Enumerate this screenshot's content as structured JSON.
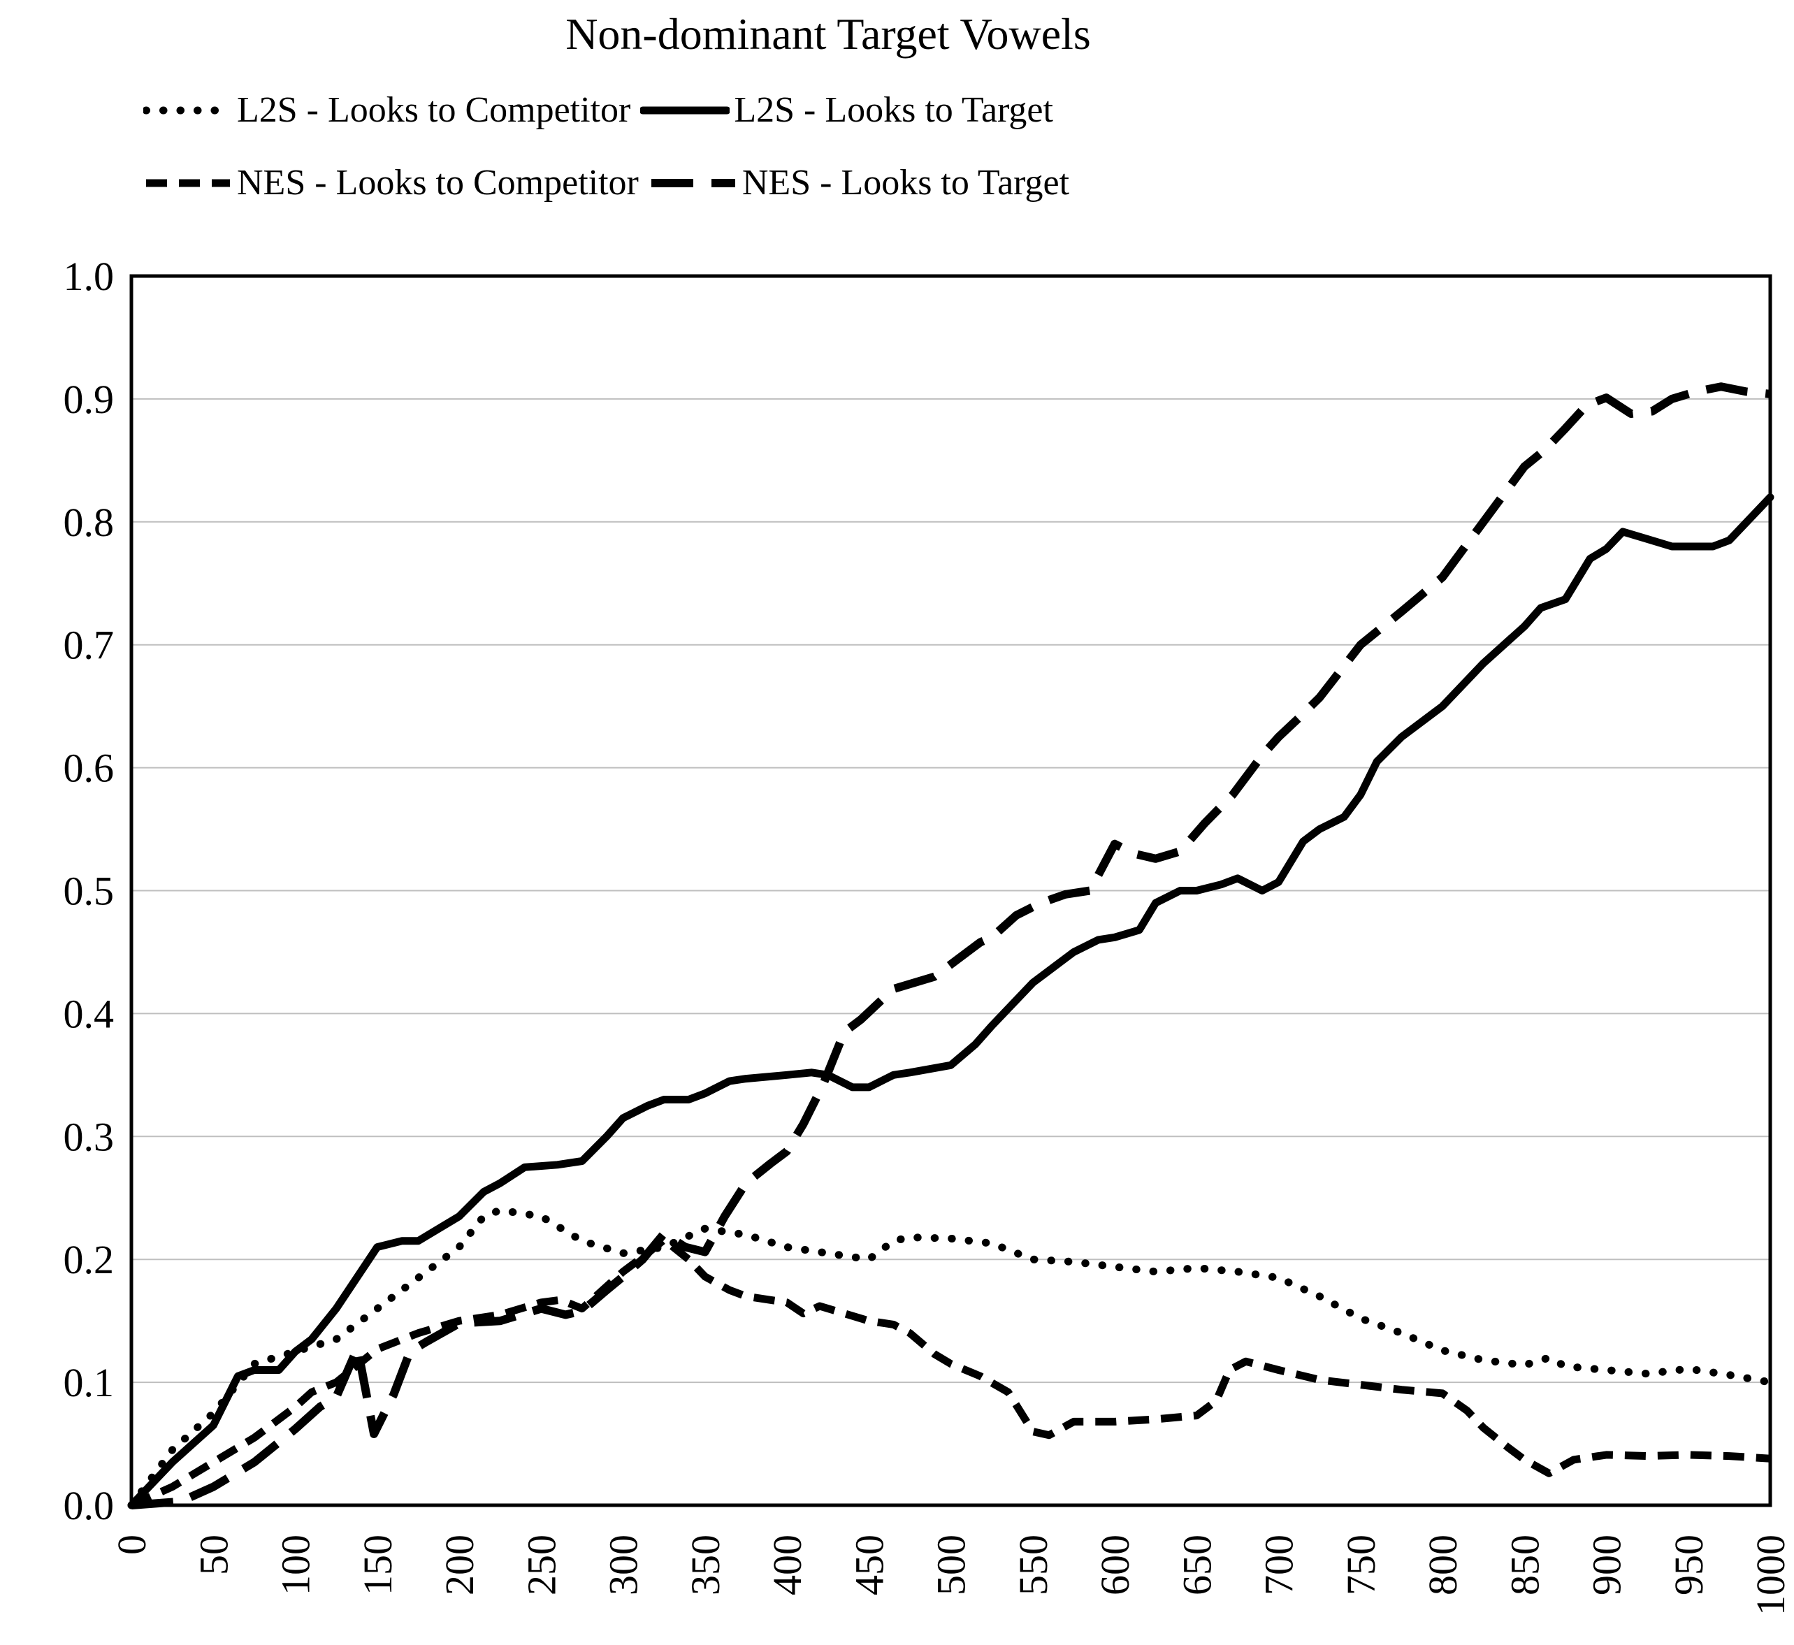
{
  "chart_data": {
    "type": "line",
    "title": "Non-dominant Target Vowels",
    "xlabel": "",
    "ylabel": "",
    "xlim": [
      0,
      1000
    ],
    "ylim": [
      0.0,
      1.0
    ],
    "x_ticks": [
      0,
      50,
      100,
      150,
      200,
      250,
      300,
      350,
      400,
      450,
      500,
      550,
      600,
      650,
      700,
      750,
      800,
      850,
      900,
      950,
      1000
    ],
    "y_ticks": [
      "1.0",
      "0.9",
      "0.8",
      "0.7",
      "0.6",
      "0.5",
      "0.4",
      "0.3",
      "0.2",
      "0.1",
      "0.0"
    ],
    "grid": "horizontal-gridlines-on",
    "legend_position": "top",
    "line_color": "#000000",
    "grid_color": "#bfbfbf",
    "series": [
      {
        "name": "L2S - Looks to Competitor",
        "style": "dotted",
        "points": [
          [
            0,
            0
          ],
          [
            25,
            0.045
          ],
          [
            50,
            0.075
          ],
          [
            75,
            0.115
          ],
          [
            100,
            0.125
          ],
          [
            125,
            0.135
          ],
          [
            150,
            0.16
          ],
          [
            175,
            0.185
          ],
          [
            200,
            0.21
          ],
          [
            215,
            0.235
          ],
          [
            225,
            0.24
          ],
          [
            250,
            0.235
          ],
          [
            275,
            0.215
          ],
          [
            300,
            0.205
          ],
          [
            325,
            0.21
          ],
          [
            350,
            0.225
          ],
          [
            375,
            0.22
          ],
          [
            400,
            0.21
          ],
          [
            425,
            0.205
          ],
          [
            450,
            0.2
          ],
          [
            465,
            0.215
          ],
          [
            475,
            0.218
          ],
          [
            500,
            0.217
          ],
          [
            525,
            0.213
          ],
          [
            550,
            0.2
          ],
          [
            575,
            0.198
          ],
          [
            600,
            0.194
          ],
          [
            625,
            0.19
          ],
          [
            650,
            0.193
          ],
          [
            675,
            0.19
          ],
          [
            700,
            0.185
          ],
          [
            725,
            0.17
          ],
          [
            750,
            0.152
          ],
          [
            775,
            0.14
          ],
          [
            800,
            0.126
          ],
          [
            825,
            0.118
          ],
          [
            850,
            0.114
          ],
          [
            865,
            0.12
          ],
          [
            875,
            0.113
          ],
          [
            900,
            0.11
          ],
          [
            925,
            0.107
          ],
          [
            950,
            0.111
          ],
          [
            975,
            0.106
          ],
          [
            1000,
            0.1
          ]
        ]
      },
      {
        "name": "L2S - Looks to Target",
        "style": "solid",
        "points": [
          [
            0,
            0
          ],
          [
            25,
            0.035
          ],
          [
            50,
            0.065
          ],
          [
            65,
            0.105
          ],
          [
            75,
            0.11
          ],
          [
            90,
            0.11
          ],
          [
            100,
            0.125
          ],
          [
            110,
            0.135
          ],
          [
            125,
            0.16
          ],
          [
            150,
            0.21
          ],
          [
            165,
            0.215
          ],
          [
            175,
            0.215
          ],
          [
            200,
            0.235
          ],
          [
            215,
            0.255
          ],
          [
            225,
            0.262
          ],
          [
            240,
            0.275
          ],
          [
            260,
            0.277
          ],
          [
            275,
            0.28
          ],
          [
            290,
            0.3
          ],
          [
            300,
            0.315
          ],
          [
            315,
            0.325
          ],
          [
            325,
            0.33
          ],
          [
            340,
            0.33
          ],
          [
            350,
            0.335
          ],
          [
            365,
            0.345
          ],
          [
            375,
            0.347
          ],
          [
            400,
            0.35
          ],
          [
            415,
            0.352
          ],
          [
            425,
            0.35
          ],
          [
            440,
            0.34
          ],
          [
            450,
            0.34
          ],
          [
            465,
            0.35
          ],
          [
            475,
            0.352
          ],
          [
            500,
            0.358
          ],
          [
            515,
            0.375
          ],
          [
            525,
            0.39
          ],
          [
            550,
            0.425
          ],
          [
            565,
            0.44
          ],
          [
            575,
            0.45
          ],
          [
            590,
            0.46
          ],
          [
            600,
            0.462
          ],
          [
            615,
            0.468
          ],
          [
            625,
            0.49
          ],
          [
            640,
            0.5
          ],
          [
            650,
            0.5
          ],
          [
            665,
            0.505
          ],
          [
            675,
            0.51
          ],
          [
            690,
            0.5
          ],
          [
            700,
            0.507
          ],
          [
            715,
            0.54
          ],
          [
            725,
            0.55
          ],
          [
            740,
            0.56
          ],
          [
            750,
            0.578
          ],
          [
            760,
            0.605
          ],
          [
            775,
            0.625
          ],
          [
            800,
            0.65
          ],
          [
            825,
            0.685
          ],
          [
            850,
            0.715
          ],
          [
            860,
            0.73
          ],
          [
            875,
            0.737
          ],
          [
            890,
            0.77
          ],
          [
            900,
            0.778
          ],
          [
            910,
            0.792
          ],
          [
            925,
            0.786
          ],
          [
            940,
            0.78
          ],
          [
            950,
            0.78
          ],
          [
            965,
            0.78
          ],
          [
            975,
            0.785
          ],
          [
            1000,
            0.82
          ]
        ]
      },
      {
        "name": "NES - Looks to Competitor",
        "style": "short-dash",
        "points": [
          [
            0,
            0
          ],
          [
            25,
            0.015
          ],
          [
            50,
            0.035
          ],
          [
            75,
            0.055
          ],
          [
            100,
            0.08
          ],
          [
            110,
            0.092
          ],
          [
            125,
            0.1
          ],
          [
            150,
            0.127
          ],
          [
            175,
            0.14
          ],
          [
            200,
            0.15
          ],
          [
            225,
            0.155
          ],
          [
            250,
            0.165
          ],
          [
            262,
            0.167
          ],
          [
            275,
            0.16
          ],
          [
            300,
            0.19
          ],
          [
            315,
            0.205
          ],
          [
            325,
            0.216
          ],
          [
            340,
            0.2
          ],
          [
            350,
            0.186
          ],
          [
            365,
            0.175
          ],
          [
            375,
            0.17
          ],
          [
            400,
            0.165
          ],
          [
            410,
            0.156
          ],
          [
            420,
            0.162
          ],
          [
            435,
            0.156
          ],
          [
            450,
            0.15
          ],
          [
            465,
            0.147
          ],
          [
            475,
            0.14
          ],
          [
            490,
            0.123
          ],
          [
            500,
            0.115
          ],
          [
            518,
            0.105
          ],
          [
            535,
            0.092
          ],
          [
            550,
            0.06
          ],
          [
            560,
            0.057
          ],
          [
            575,
            0.068
          ],
          [
            600,
            0.068
          ],
          [
            625,
            0.07
          ],
          [
            650,
            0.073
          ],
          [
            662,
            0.085
          ],
          [
            670,
            0.11
          ],
          [
            680,
            0.117
          ],
          [
            700,
            0.11
          ],
          [
            725,
            0.102
          ],
          [
            750,
            0.098
          ],
          [
            775,
            0.094
          ],
          [
            800,
            0.091
          ],
          [
            815,
            0.077
          ],
          [
            825,
            0.063
          ],
          [
            840,
            0.047
          ],
          [
            850,
            0.037
          ],
          [
            865,
            0.026
          ],
          [
            880,
            0.037
          ],
          [
            900,
            0.041
          ],
          [
            925,
            0.04
          ],
          [
            950,
            0.041
          ],
          [
            975,
            0.04
          ],
          [
            1000,
            0.038
          ]
        ]
      },
      {
        "name": "NES - Looks to Target",
        "style": "long-dash",
        "points": [
          [
            0,
            0
          ],
          [
            30,
            0.003
          ],
          [
            50,
            0.015
          ],
          [
            75,
            0.035
          ],
          [
            100,
            0.062
          ],
          [
            115,
            0.08
          ],
          [
            125,
            0.088
          ],
          [
            138,
            0.128
          ],
          [
            148,
            0.058
          ],
          [
            160,
            0.09
          ],
          [
            170,
            0.125
          ],
          [
            180,
            0.133
          ],
          [
            200,
            0.148
          ],
          [
            225,
            0.15
          ],
          [
            250,
            0.16
          ],
          [
            265,
            0.155
          ],
          [
            275,
            0.158
          ],
          [
            290,
            0.175
          ],
          [
            300,
            0.186
          ],
          [
            312,
            0.2
          ],
          [
            325,
            0.221
          ],
          [
            338,
            0.21
          ],
          [
            350,
            0.206
          ],
          [
            362,
            0.235
          ],
          [
            375,
            0.262
          ],
          [
            390,
            0.278
          ],
          [
            400,
            0.288
          ],
          [
            410,
            0.31
          ],
          [
            422,
            0.342
          ],
          [
            435,
            0.385
          ],
          [
            445,
            0.395
          ],
          [
            465,
            0.42
          ],
          [
            490,
            0.43
          ],
          [
            518,
            0.458
          ],
          [
            525,
            0.462
          ],
          [
            540,
            0.48
          ],
          [
            555,
            0.49
          ],
          [
            570,
            0.497
          ],
          [
            585,
            0.5
          ],
          [
            600,
            0.538
          ],
          [
            612,
            0.53
          ],
          [
            625,
            0.526
          ],
          [
            640,
            0.532
          ],
          [
            655,
            0.555
          ],
          [
            672,
            0.578
          ],
          [
            690,
            0.61
          ],
          [
            700,
            0.625
          ],
          [
            712,
            0.64
          ],
          [
            725,
            0.657
          ],
          [
            750,
            0.7
          ],
          [
            775,
            0.727
          ],
          [
            800,
            0.755
          ],
          [
            825,
            0.8
          ],
          [
            850,
            0.845
          ],
          [
            862,
            0.858
          ],
          [
            875,
            0.876
          ],
          [
            888,
            0.895
          ],
          [
            900,
            0.901
          ],
          [
            915,
            0.888
          ],
          [
            928,
            0.89
          ],
          [
            940,
            0.9
          ],
          [
            955,
            0.906
          ],
          [
            970,
            0.91
          ],
          [
            985,
            0.906
          ],
          [
            1000,
            0.904
          ]
        ]
      }
    ]
  }
}
